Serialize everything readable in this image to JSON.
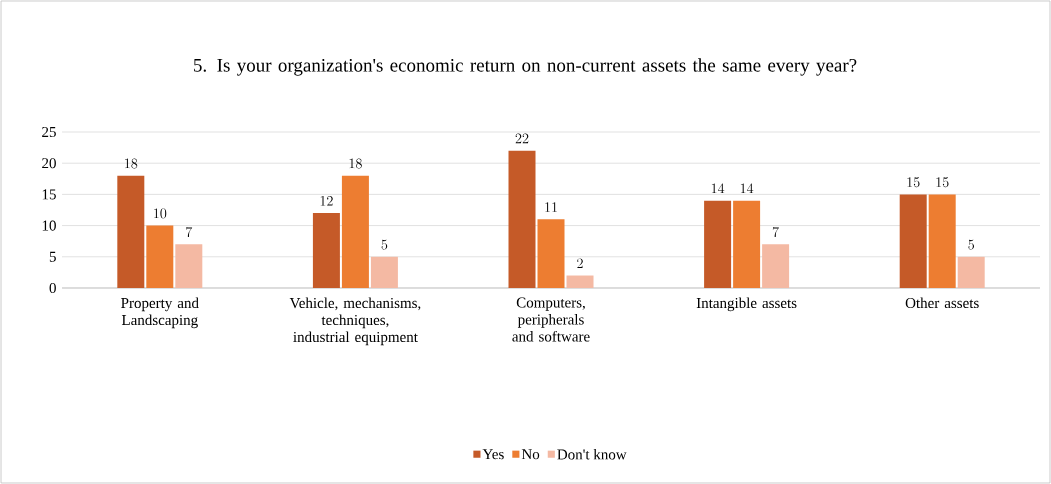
{
  "chart_data": {
    "type": "bar",
    "title": "5. Is your organization's economic return on non-current assets the same every year?",
    "categories": [
      "Property and Landscaping",
      "Vehicle, mechanisms, techniques, industrial equipment",
      "Computers, peripherals and software",
      "Intangible assets",
      "Other assets"
    ],
    "series": [
      {
        "name": "Yes",
        "color": "#c55a28",
        "values": [
          18,
          12,
          22,
          14,
          15
        ]
      },
      {
        "name": "No",
        "color": "#ed7d31",
        "values": [
          10,
          18,
          11,
          14,
          15
        ]
      },
      {
        "name": "Don't know",
        "color": "#f4b9a3",
        "values": [
          7,
          5,
          2,
          7,
          5
        ]
      }
    ],
    "ylim": [
      0,
      25
    ],
    "yticks": [
      0,
      5,
      10,
      15,
      20,
      25
    ],
    "grid": "y",
    "legend": "bottom",
    "data_labels": true
  }
}
